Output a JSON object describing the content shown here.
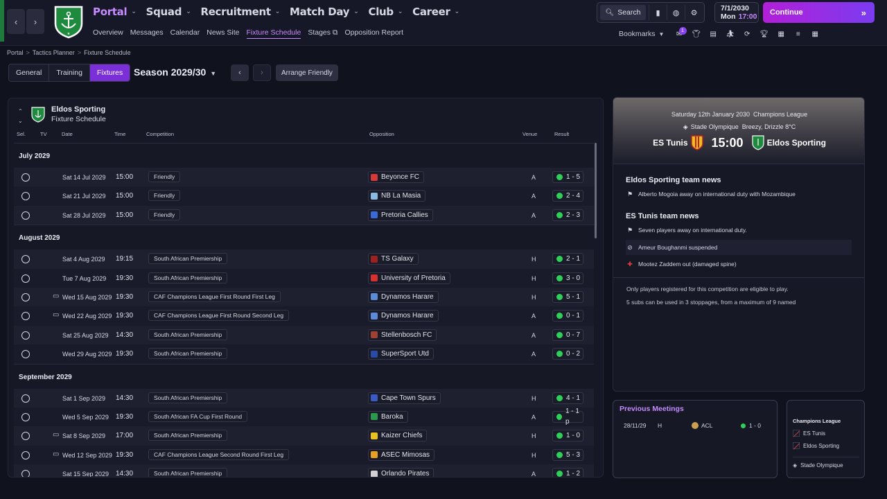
{
  "header": {
    "menu": [
      {
        "label": "Portal",
        "active": true
      },
      {
        "label": "Squad"
      },
      {
        "label": "Recruitment"
      },
      {
        "label": "Match Day"
      },
      {
        "label": "Club"
      },
      {
        "label": "Career"
      }
    ],
    "submenu": [
      {
        "label": "Overview"
      },
      {
        "label": "Messages"
      },
      {
        "label": "Calendar"
      },
      {
        "label": "News Site"
      },
      {
        "label": "Fixture Schedule",
        "active": true
      },
      {
        "label": "Stages"
      },
      {
        "label": "Opposition Report"
      }
    ],
    "search_label": "Search",
    "date": "7/1/2030",
    "day": "Mon",
    "time": "17:00",
    "continue_label": "Continue",
    "bookmarks_label": "Bookmarks",
    "notification_count": "1",
    "accent_color": "#c58bff"
  },
  "breadcrumb": [
    "Portal",
    "Tactics Planner",
    "Fixture Schedule"
  ],
  "tabs": [
    {
      "label": "General"
    },
    {
      "label": "Training"
    },
    {
      "label": "Fixtures",
      "active": true
    }
  ],
  "season": "Season 2029/30",
  "arrange_label": "Arrange Friendly",
  "schedule": {
    "club": "Eldos Sporting",
    "subtitle": "Fixture Schedule",
    "columns": {
      "sel": "Sel.",
      "tv": "TV",
      "date": "Date",
      "time": "Time",
      "competition": "Competition",
      "opposition": "Opposition",
      "venue": "Venue",
      "result": "Result"
    },
    "months": [
      {
        "name": "July 2029",
        "fixtures": [
          {
            "tv": false,
            "date": "Sat 14 Jul 2029",
            "time": "15:00",
            "competition": "Friendly",
            "opposition": "Beyonce FC",
            "crest": "#d83838",
            "venue": "A",
            "result": "1 - 5"
          },
          {
            "tv": false,
            "date": "Sat 21 Jul 2029",
            "time": "15:00",
            "competition": "Friendly",
            "opposition": "NB La Masia",
            "crest": "#8ab8e0",
            "venue": "A",
            "result": "2 - 4"
          },
          {
            "tv": false,
            "date": "Sat 28 Jul 2029",
            "time": "15:00",
            "competition": "Friendly",
            "opposition": "Pretoria Callies",
            "crest": "#3a6ad8",
            "venue": "A",
            "result": "2 - 3"
          }
        ]
      },
      {
        "name": "August 2029",
        "fixtures": [
          {
            "tv": false,
            "date": "Sat 4 Aug 2029",
            "time": "19:15",
            "competition": "South African Premiership",
            "opposition": "TS Galaxy",
            "crest": "#a02020",
            "venue": "H",
            "result": "2 - 1"
          },
          {
            "tv": false,
            "date": "Tue 7 Aug 2029",
            "time": "19:30",
            "competition": "South African Premiership",
            "opposition": "University of Pretoria",
            "crest": "#d83030",
            "venue": "H",
            "result": "3 - 0"
          },
          {
            "tv": true,
            "date": "Wed 15 Aug 2029",
            "time": "19:30",
            "competition": "CAF Champions League First Round First Leg",
            "opposition": "Dynamos Harare",
            "crest": "#5a8ad8",
            "venue": "H",
            "result": "5 - 1"
          },
          {
            "tv": true,
            "date": "Wed 22 Aug 2029",
            "time": "19:30",
            "competition": "CAF Champions League First Round Second Leg",
            "opposition": "Dynamos Harare",
            "crest": "#5a8ad8",
            "venue": "A",
            "result": "0 - 1"
          },
          {
            "tv": false,
            "date": "Sat 25 Aug 2029",
            "time": "14:30",
            "competition": "South African Premiership",
            "opposition": "Stellenbosch FC",
            "crest": "#a04030",
            "venue": "A",
            "result": "0 - 7"
          },
          {
            "tv": false,
            "date": "Wed 29 Aug 2029",
            "time": "19:30",
            "competition": "South African Premiership",
            "opposition": "SuperSport Utd",
            "crest": "#2a4aa8",
            "venue": "A",
            "result": "0 - 2"
          }
        ]
      },
      {
        "name": "September 2029",
        "fixtures": [
          {
            "tv": false,
            "date": "Sat 1 Sep 2029",
            "time": "14:30",
            "competition": "South African Premiership",
            "opposition": "Cape Town Spurs",
            "crest": "#3a5ac8",
            "venue": "H",
            "result": "4 - 1"
          },
          {
            "tv": false,
            "date": "Wed 5 Sep 2029",
            "time": "19:30",
            "competition": "South African FA Cup First Round",
            "opposition": "Baroka",
            "crest": "#2a9a4a",
            "venue": "A",
            "result": "1 - 1 p"
          },
          {
            "tv": true,
            "date": "Sat 8 Sep 2029",
            "time": "17:00",
            "competition": "South African Premiership",
            "opposition": "Kaizer Chiefs",
            "crest": "#e8c020",
            "venue": "H",
            "result": "1 - 0"
          },
          {
            "tv": true,
            "date": "Wed 12 Sep 2029",
            "time": "19:30",
            "competition": "CAF Champions League Second Round First Leg",
            "opposition": "ASEC Mimosas",
            "crest": "#e8a020",
            "venue": "H",
            "result": "5 - 3"
          },
          {
            "tv": false,
            "date": "Sat 15 Sep 2029",
            "time": "14:30",
            "competition": "South African Premiership",
            "opposition": "Orlando Pirates",
            "crest": "#d0d0d0",
            "venue": "A",
            "result": "1 - 2"
          }
        ]
      }
    ]
  },
  "match": {
    "date_line": "Saturday 12th January 2030",
    "competition": "Champions League",
    "stadium": "Stade Olympique",
    "weather": "Breezy, Drizzle 8°C",
    "home": "ES Tunis",
    "away": "Eldos Sporting",
    "kickoff": "15:00",
    "home_news_title": "Eldos Sporting team news",
    "home_news": [
      {
        "icon": "flag-icon",
        "text": "Alberto Mogoia away on international duty with Mozambique"
      }
    ],
    "away_news_title": "ES Tunis team news",
    "away_news": [
      {
        "icon": "flag-icon",
        "text": "Seven players away on international duty."
      },
      {
        "icon": "suspended-icon",
        "text": "Ameur Boughanmi suspended"
      },
      {
        "icon": "injury-icon",
        "text": "Mootez Zaddem out (damaged spine)"
      }
    ],
    "info": [
      "Only players registered for this competition are eligible to play.",
      "5 subs can be used in 3 stoppages, from a maximum of 9 named"
    ]
  },
  "previous": {
    "title": "Previous Meetings",
    "rows": [
      {
        "date": "28/11/29",
        "venue": "H",
        "competition": "ACL",
        "result": "1 - 0"
      }
    ]
  },
  "comp_box": {
    "title": "Champions League",
    "teams": [
      "ES Tunis",
      "Eldos Sporting"
    ],
    "stadium": "Stade Olympique"
  }
}
